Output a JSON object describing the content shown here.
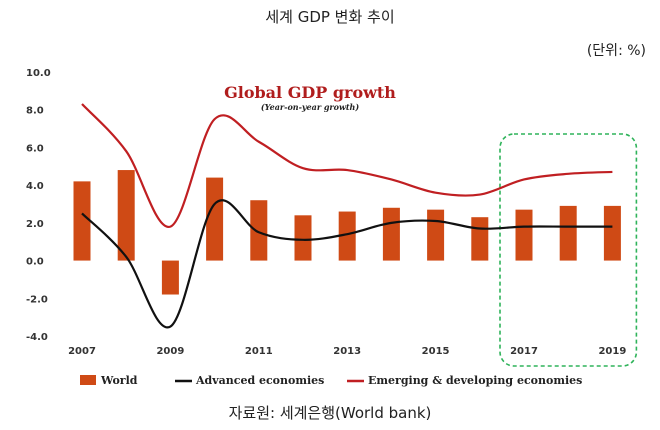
{
  "header": {
    "title": "세계 GDP 변화 추이",
    "unit": "(단위: %)"
  },
  "footer": {
    "source": "자료원: 세계은행(World bank)"
  },
  "colors": {
    "world": "#cf4a15",
    "advanced": "#111111",
    "emerging": "#c01f22",
    "highlight_box": "#2fb35a"
  },
  "chart_data": {
    "type": "bar",
    "title": "Global GDP growth",
    "subtitle": "(Year-on-year growth)",
    "xlabel": "",
    "ylabel": "",
    "ylim": [
      -4.0,
      10.0
    ],
    "yticks": [
      "10.0",
      "8.0",
      "6.0",
      "4.0",
      "2.0",
      "0.0",
      "-2.0",
      "-4.0"
    ],
    "ytick_values": [
      10,
      8,
      6,
      4,
      2,
      0,
      -2,
      -4
    ],
    "categories": [
      "2007",
      "2008",
      "2009",
      "2010",
      "2011",
      "2012",
      "2013",
      "2014",
      "2015",
      "2016",
      "2017",
      "2018",
      "2019"
    ],
    "xtick_labels": [
      "2007",
      "2009",
      "2011",
      "2013",
      "2015",
      "2017",
      "2019"
    ],
    "grid": false,
    "legend_position": "bottom",
    "highlight_range": [
      "2017",
      "2019"
    ],
    "series": [
      {
        "name": "World",
        "kind": "bar",
        "values": [
          4.2,
          4.8,
          -1.8,
          4.4,
          3.2,
          2.4,
          2.6,
          2.8,
          2.7,
          2.3,
          2.7,
          2.9,
          2.9
        ]
      },
      {
        "name": "Advanced economies",
        "kind": "line",
        "values": [
          2.5,
          0.2,
          -3.5,
          3.0,
          1.5,
          1.1,
          1.4,
          2.0,
          2.1,
          1.7,
          1.8,
          1.8,
          1.8
        ]
      },
      {
        "name": "Emerging & developing economies",
        "kind": "line",
        "values": [
          8.3,
          5.8,
          1.8,
          7.5,
          6.3,
          4.9,
          4.8,
          4.3,
          3.6,
          3.5,
          4.3,
          4.6,
          4.7
        ]
      }
    ]
  }
}
